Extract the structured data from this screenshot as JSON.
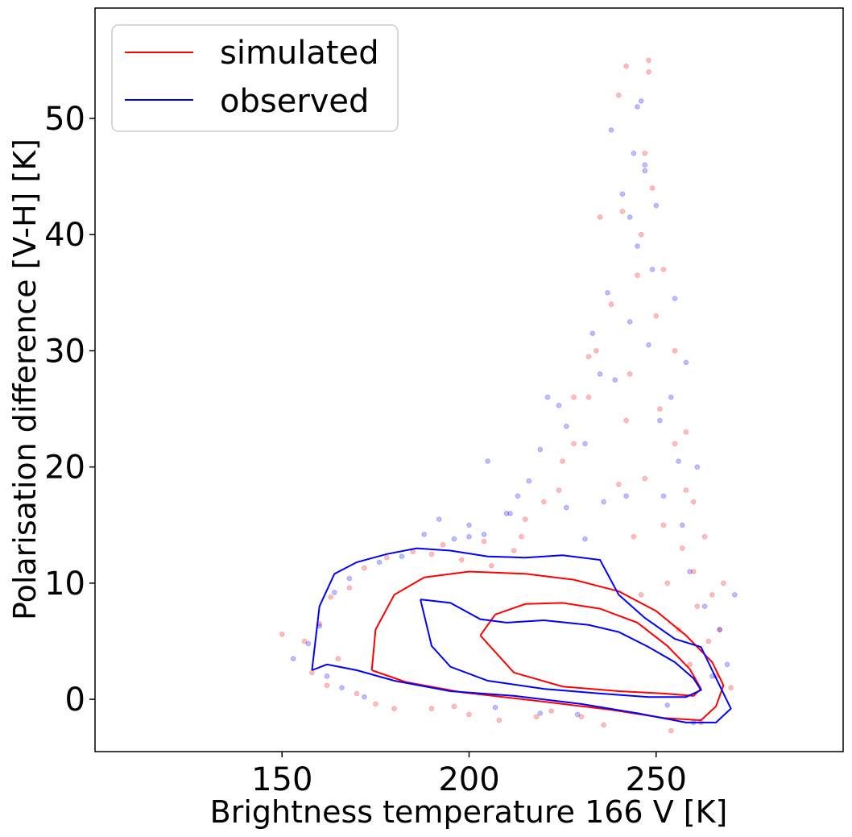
{
  "chart_data": {
    "type": "scatter",
    "xlabel": "Brightness temperature 166 V [K]",
    "ylabel": "Polarisation difference [V-H] [K]",
    "xlim": [
      100,
      300
    ],
    "ylim": [
      -4.5,
      59.5
    ],
    "xticks": [
      150,
      200,
      250
    ],
    "yticks": [
      0,
      10,
      20,
      30,
      40,
      50
    ],
    "legend_placement": "top-left",
    "grid": false,
    "colors": {
      "simulated": "#ff0000",
      "observed": "#0000ff"
    },
    "series": [
      {
        "name": "simulated",
        "color": "#ff0000",
        "contours": [
          [
            [
              174,
              2.5
            ],
            [
              175,
              6
            ],
            [
              180,
              9
            ],
            [
              188,
              10.5
            ],
            [
              200,
              11
            ],
            [
              215,
              10.8
            ],
            [
              228,
              10.3
            ],
            [
              240,
              9.3
            ],
            [
              250,
              7.6
            ],
            [
              258,
              5.5
            ],
            [
              265,
              3.2
            ],
            [
              268,
              1.2
            ],
            [
              266,
              -0.6
            ],
            [
              262,
              -1.8
            ],
            [
              252,
              -1.6
            ],
            [
              238,
              -0.9
            ],
            [
              220,
              -0.2
            ],
            [
              198,
              0.6
            ],
            [
              183,
              1.5
            ],
            [
              174,
              2.5
            ]
          ],
          [
            [
              203,
              5.5
            ],
            [
              207,
              7.3
            ],
            [
              215,
              8.2
            ],
            [
              225,
              8.3
            ],
            [
              235,
              7.8
            ],
            [
              245,
              6.6
            ],
            [
              253,
              4.6
            ],
            [
              259,
              2.6
            ],
            [
              262,
              0.9
            ],
            [
              260,
              0.3
            ],
            [
              252,
              0.5
            ],
            [
              240,
              0.7
            ],
            [
              225,
              1.1
            ],
            [
              212,
              2.3
            ],
            [
              203,
              5.5
            ]
          ]
        ],
        "points": [
          [
            150,
            5.6
          ],
          [
            156,
            5
          ],
          [
            158,
            2.3
          ],
          [
            160,
            6.5
          ],
          [
            162,
            1.2
          ],
          [
            163,
            8.8
          ],
          [
            165,
            3.5
          ],
          [
            168,
            9.6
          ],
          [
            170,
            0.5
          ],
          [
            172,
            11.3
          ],
          [
            175,
            -0.4
          ],
          [
            178,
            12.2
          ],
          [
            180,
            -0.8
          ],
          [
            185,
            12.7
          ],
          [
            190,
            -0.8
          ],
          [
            193,
            13.3
          ],
          [
            196,
            -0.6
          ],
          [
            200,
            -1.3
          ],
          [
            204,
            13.6
          ],
          [
            208,
            -1.8
          ],
          [
            212,
            12.8
          ],
          [
            215,
            15.5
          ],
          [
            218,
            -1.5
          ],
          [
            220,
            17
          ],
          [
            222,
            -1
          ],
          [
            225,
            20.5
          ],
          [
            228,
            22
          ],
          [
            230,
            -1.5
          ],
          [
            232,
            26
          ],
          [
            234,
            30
          ],
          [
            236,
            -2.2
          ],
          [
            238,
            34
          ],
          [
            240,
            18.5
          ],
          [
            241,
            42
          ],
          [
            242,
            24
          ],
          [
            243,
            28
          ],
          [
            244,
            14
          ],
          [
            245,
            36.5
          ],
          [
            246,
            9
          ],
          [
            247,
            19
          ],
          [
            248,
            55
          ],
          [
            248,
            54
          ],
          [
            249,
            44
          ],
          [
            250,
            33
          ],
          [
            251,
            25
          ],
          [
            252,
            15
          ],
          [
            253,
            10
          ],
          [
            254,
            -2.7
          ],
          [
            255,
            22
          ],
          [
            256,
            6
          ],
          [
            257,
            13
          ],
          [
            258,
            18
          ],
          [
            259,
            3
          ],
          [
            260,
            11
          ],
          [
            261,
            8
          ],
          [
            262,
            -2
          ],
          [
            263,
            14
          ],
          [
            264,
            5
          ],
          [
            265,
            9
          ],
          [
            266,
            2
          ],
          [
            267,
            6
          ],
          [
            268,
            10
          ],
          [
            270,
            1
          ],
          [
            240,
            52
          ],
          [
            242,
            54.5
          ],
          [
            246,
            40
          ],
          [
            235,
            41.5
          ],
          [
            232,
            29.5
          ],
          [
            228,
            26
          ],
          [
            224,
            18
          ],
          [
            214,
            14
          ],
          [
            206,
            11.5
          ],
          [
            198,
            12
          ],
          [
            190,
            12.5
          ],
          [
            247,
            47
          ],
          [
            252,
            37
          ],
          [
            255,
            30
          ],
          [
            258,
            23
          ],
          [
            260,
            17
          ]
        ]
      },
      {
        "name": "observed",
        "color": "#0000ff",
        "contours": [
          [
            [
              158,
              2.5
            ],
            [
              160,
              8
            ],
            [
              164,
              10.8
            ],
            [
              170,
              11.8
            ],
            [
              178,
              12.5
            ],
            [
              186,
              13
            ],
            [
              195,
              12.8
            ],
            [
              205,
              12.3
            ],
            [
              215,
              12.2
            ],
            [
              225,
              12.4
            ],
            [
              235,
              12
            ],
            [
              240,
              9
            ],
            [
              247,
              7
            ],
            [
              255,
              5.2
            ],
            [
              262,
              4.5
            ],
            [
              265,
              2.5
            ],
            [
              270,
              -0.8
            ],
            [
              266,
              -2
            ],
            [
              258,
              -2
            ],
            [
              245,
              -1.2
            ],
            [
              230,
              -0.4
            ],
            [
              212,
              0.3
            ],
            [
              195,
              0.7
            ],
            [
              180,
              1.6
            ],
            [
              170,
              2.5
            ],
            [
              162,
              3
            ],
            [
              158,
              2.5
            ]
          ],
          [
            [
              187,
              8.6
            ],
            [
              195,
              8.3
            ],
            [
              203,
              6.9
            ],
            [
              210,
              6.6
            ],
            [
              220,
              6.8
            ],
            [
              232,
              6.4
            ],
            [
              240,
              5.8
            ],
            [
              248,
              4.5
            ],
            [
              255,
              3.2
            ],
            [
              260,
              1.8
            ],
            [
              262,
              0.8
            ],
            [
              258,
              0.2
            ],
            [
              248,
              0.2
            ],
            [
              235,
              0.5
            ],
            [
              220,
              0.9
            ],
            [
              205,
              1.6
            ],
            [
              195,
              2.8
            ],
            [
              190,
              4.6
            ],
            [
              187,
              8.6
            ]
          ]
        ],
        "points": [
          [
            153,
            3.5
          ],
          [
            157,
            4.8
          ],
          [
            160,
            6.3
          ],
          [
            162,
            2
          ],
          [
            164,
            9.2
          ],
          [
            166,
            1
          ],
          [
            168,
            10.4
          ],
          [
            172,
            0.2
          ],
          [
            176,
            11.8
          ],
          [
            182,
            12.3
          ],
          [
            188,
            14.2
          ],
          [
            192,
            15.5
          ],
          [
            196,
            13.8
          ],
          [
            200,
            15
          ],
          [
            204,
            14.2
          ],
          [
            207,
            -0.7
          ],
          [
            210,
            16
          ],
          [
            213,
            17.5
          ],
          [
            216,
            18.8
          ],
          [
            219,
            -1.2
          ],
          [
            221,
            26
          ],
          [
            224,
            25.3
          ],
          [
            226,
            23.5
          ],
          [
            229,
            -1.3
          ],
          [
            231,
            22
          ],
          [
            233,
            31.5
          ],
          [
            235,
            28
          ],
          [
            237,
            35
          ],
          [
            238,
            49
          ],
          [
            239,
            27.5
          ],
          [
            241,
            43.5
          ],
          [
            242,
            17.5
          ],
          [
            243,
            32.5
          ],
          [
            244,
            47
          ],
          [
            245,
            39
          ],
          [
            246,
            51.5
          ],
          [
            247,
            45.5
          ],
          [
            248,
            30.5
          ],
          [
            249,
            37
          ],
          [
            250,
            42.5
          ],
          [
            251,
            24
          ],
          [
            252,
            17.5
          ],
          [
            253,
            -0.5
          ],
          [
            254,
            26
          ],
          [
            255,
            34.5
          ],
          [
            256,
            20.5
          ],
          [
            257,
            15
          ],
          [
            258,
            29
          ],
          [
            259,
            11
          ],
          [
            260,
            -2
          ],
          [
            261,
            20
          ],
          [
            263,
            8
          ],
          [
            265,
            2
          ],
          [
            267,
            6
          ],
          [
            269,
            3
          ],
          [
            271,
            9
          ],
          [
            245,
            51
          ],
          [
            247,
            46
          ],
          [
            243,
            41.5
          ],
          [
            236,
            17
          ],
          [
            231,
            13.8
          ],
          [
            226,
            16.5
          ],
          [
            219,
            21.5
          ],
          [
            211,
            16
          ],
          [
            205,
            20.5
          ],
          [
            200,
            14
          ]
        ]
      }
    ]
  }
}
